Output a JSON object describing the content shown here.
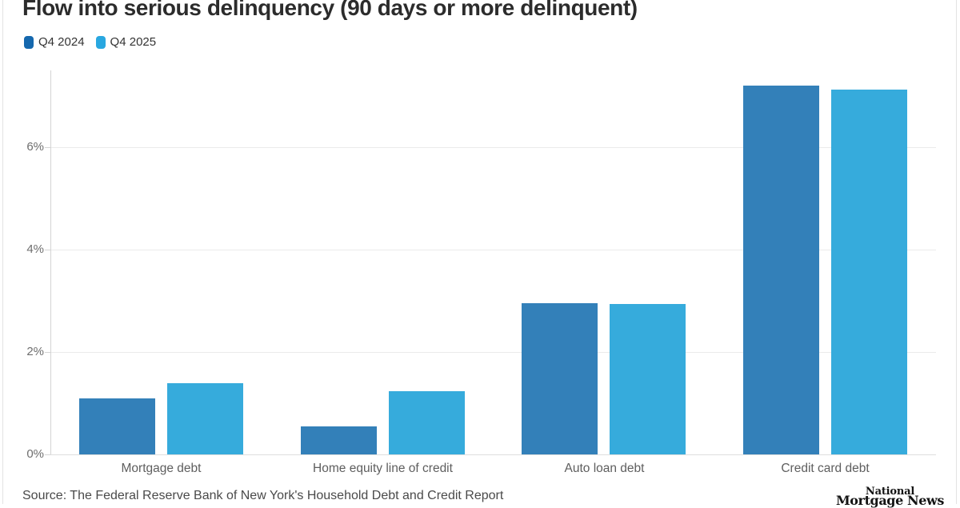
{
  "chart_data": {
    "type": "bar",
    "title": "Flow into serious delinquency (90 days or more delinquent)",
    "categories": [
      "Mortgage debt",
      "Home equity line of credit",
      "Auto loan debt",
      "Credit card debt"
    ],
    "series": [
      {
        "name": "Q4 2024",
        "color": "#3380b9",
        "legend_color": "#1568ae",
        "values": [
          1.09,
          0.55,
          2.95,
          7.2
        ]
      },
      {
        "name": "Q4 2025",
        "color": "#36abdc",
        "legend_color": "#29a7e0",
        "values": [
          1.39,
          1.23,
          2.93,
          7.13
        ]
      }
    ],
    "xlabel": "",
    "ylabel": "",
    "ytick_values": [
      0,
      2,
      4,
      6
    ],
    "ytick_labels": [
      "0%",
      "2%",
      "4%",
      "6%"
    ],
    "ylim": [
      0,
      7.5
    ],
    "grid": true,
    "legend_position": "top-left"
  },
  "footer": {
    "source": "Source: The Federal Reserve Bank of New York's Household Debt and Credit Report",
    "logo_line1": "National",
    "logo_line2": "Mortgage News"
  }
}
